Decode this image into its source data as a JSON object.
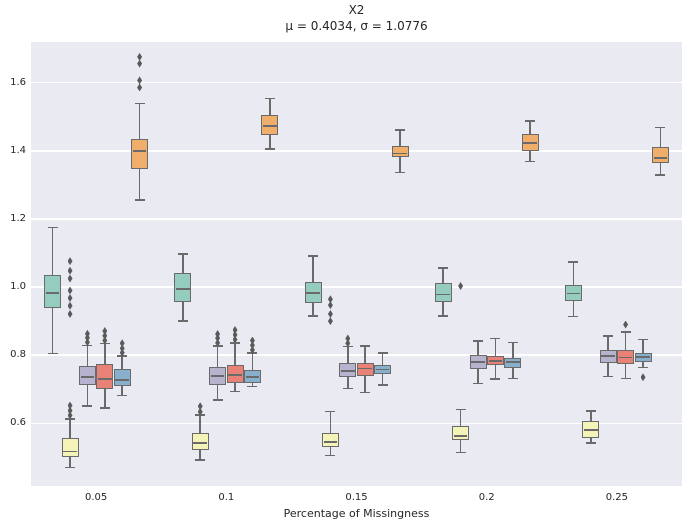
{
  "title": "X2",
  "subtitle": "μ = 0.4034, σ = 1.0776",
  "axes": {
    "xlabel": "Percentage of Missingness"
  },
  "colors": {
    "plot_background": "#eaeaf2",
    "grid": "#ffffff",
    "box_edge": "#6a6a6a",
    "flier": "#5a5a5a",
    "text": "#262626"
  },
  "chart_data": {
    "type": "box",
    "title": "X2",
    "subtitle": "μ = 0.4034, σ = 1.0776",
    "xlabel": "Percentage of Missingness",
    "ylabel": "",
    "categories": [
      "0.05",
      "0.1",
      "0.15",
      "0.2",
      "0.25"
    ],
    "yticks": [
      "0.6",
      "0.8",
      "1.0",
      "1.2",
      "1.4",
      "1.6"
    ],
    "ylim": [
      0.4158,
      1.7195
    ],
    "grid": "horizontal-white-on-lavender",
    "legend": "none",
    "box_stat_keys": [
      "whislo",
      "q1",
      "med",
      "q3",
      "whishi",
      "fliers"
    ],
    "series": [
      {
        "name": "teal",
        "color": "#94ccbe",
        "boxes": [
          {
            "whislo": 0.805,
            "q1": 0.937,
            "med": 0.983,
            "q3": 1.035,
            "whishi": 1.175,
            "fliers": []
          },
          {
            "whislo": 0.9,
            "q1": 0.957,
            "med": 0.995,
            "q3": 1.042,
            "whishi": 1.097,
            "fliers": []
          },
          {
            "whislo": 0.915,
            "q1": 0.952,
            "med": 0.982,
            "q3": 1.016,
            "whishi": 1.091,
            "fliers": []
          },
          {
            "whislo": 0.915,
            "q1": 0.957,
            "med": 0.978,
            "q3": 1.013,
            "whishi": 1.056,
            "fliers": []
          },
          {
            "whislo": 0.913,
            "q1": 0.959,
            "med": 0.981,
            "q3": 1.007,
            "whishi": 1.074,
            "fliers": []
          }
        ]
      },
      {
        "name": "yellow",
        "color": "#f4f4b9",
        "boxes": [
          {
            "whislo": 0.47,
            "q1": 0.502,
            "med": 0.517,
            "q3": 0.556,
            "whishi": 0.612,
            "fliers": [
              0.623,
              0.637,
              0.652,
              0.921,
              0.945,
              0.968,
              0.99,
              1.025,
              1.048,
              1.076
            ]
          },
          {
            "whislo": 0.492,
            "q1": 0.521,
            "med": 0.541,
            "q3": 0.57,
            "whishi": 0.624,
            "fliers": [
              0.634,
              0.65
            ]
          },
          {
            "whislo": 0.506,
            "q1": 0.531,
            "med": 0.545,
            "q3": 0.572,
            "whishi": 0.634,
            "fliers": [
              0.9,
              0.921,
              0.947,
              0.964
            ]
          },
          {
            "whislo": 0.514,
            "q1": 0.551,
            "med": 0.563,
            "q3": 0.592,
            "whishi": 0.641,
            "fliers": [
              1.003
            ]
          },
          {
            "whislo": 0.542,
            "q1": 0.556,
            "med": 0.58,
            "q3": 0.607,
            "whishi": 0.636,
            "fliers": []
          }
        ]
      },
      {
        "name": "lavender",
        "color": "#b7b3ce",
        "boxes": [
          {
            "whislo": 0.65,
            "q1": 0.712,
            "med": 0.735,
            "q3": 0.767,
            "whishi": 0.829,
            "fliers": [
              0.838,
              0.851,
              0.863
            ]
          },
          {
            "whislo": 0.668,
            "q1": 0.712,
            "med": 0.738,
            "q3": 0.765,
            "whishi": 0.827,
            "fliers": [
              0.836,
              0.85,
              0.862
            ]
          },
          {
            "whislo": 0.702,
            "q1": 0.737,
            "med": 0.754,
            "q3": 0.776,
            "whishi": 0.825,
            "fliers": [
              0.835,
              0.849
            ]
          },
          {
            "whislo": 0.717,
            "q1": 0.758,
            "med": 0.779,
            "q3": 0.8,
            "whishi": 0.841,
            "fliers": []
          },
          {
            "whislo": 0.737,
            "q1": 0.776,
            "med": 0.797,
            "q3": 0.815,
            "whishi": 0.856,
            "fliers": []
          }
        ]
      },
      {
        "name": "salmon",
        "color": "#e88276",
        "boxes": [
          {
            "whislo": 0.645,
            "q1": 0.702,
            "med": 0.729,
            "q3": 0.773,
            "whishi": 0.834,
            "fliers": [
              0.843,
              0.857,
              0.871
            ]
          },
          {
            "whislo": 0.693,
            "q1": 0.717,
            "med": 0.742,
            "q3": 0.771,
            "whishi": 0.835,
            "fliers": [
              0.846,
              0.86,
              0.874
            ]
          },
          {
            "whislo": 0.69,
            "q1": 0.739,
            "med": 0.761,
            "q3": 0.778,
            "whishi": 0.827,
            "fliers": []
          },
          {
            "whislo": 0.73,
            "q1": 0.771,
            "med": 0.783,
            "q3": 0.798,
            "whishi": 0.849,
            "fliers": []
          },
          {
            "whislo": 0.732,
            "q1": 0.773,
            "med": 0.793,
            "q3": 0.815,
            "whishi": 0.868,
            "fliers": [
              0.89
            ]
          }
        ]
      },
      {
        "name": "blue",
        "color": "#88afcb",
        "boxes": [
          {
            "whislo": 0.682,
            "q1": 0.709,
            "med": 0.727,
            "q3": 0.759,
            "whishi": 0.798,
            "fliers": [
              0.807,
              0.82,
              0.835
            ]
          },
          {
            "whislo": 0.708,
            "q1": 0.719,
            "med": 0.737,
            "q3": 0.757,
            "whishi": 0.806,
            "fliers": [
              0.815,
              0.829,
              0.843
            ]
          },
          {
            "whislo": 0.712,
            "q1": 0.744,
            "med": 0.758,
            "q3": 0.771,
            "whishi": 0.807,
            "fliers": []
          },
          {
            "whislo": 0.732,
            "q1": 0.761,
            "med": 0.779,
            "q3": 0.792,
            "whishi": 0.837,
            "fliers": []
          },
          {
            "whislo": 0.764,
            "q1": 0.78,
            "med": 0.795,
            "q3": 0.807,
            "whishi": 0.846,
            "fliers": [
              0.735
            ]
          }
        ]
      },
      {
        "name": "orange",
        "color": "#efae69",
        "boxes": [
          {
            "whislo": 1.255,
            "q1": 1.347,
            "med": 1.399,
            "q3": 1.434,
            "whishi": 1.539,
            "fliers": [
              1.586,
              1.607,
              1.656,
              1.676
            ]
          },
          {
            "whislo": 1.405,
            "q1": 1.446,
            "med": 1.473,
            "q3": 1.505,
            "whishi": 1.554,
            "fliers": []
          },
          {
            "whislo": 1.336,
            "q1": 1.381,
            "med": 1.392,
            "q3": 1.414,
            "whishi": 1.461,
            "fliers": []
          },
          {
            "whislo": 1.368,
            "q1": 1.399,
            "med": 1.424,
            "q3": 1.449,
            "whishi": 1.488,
            "fliers": []
          },
          {
            "whislo": 1.329,
            "q1": 1.365,
            "med": 1.379,
            "q3": 1.412,
            "whishi": 1.469,
            "fliers": []
          }
        ]
      }
    ]
  }
}
